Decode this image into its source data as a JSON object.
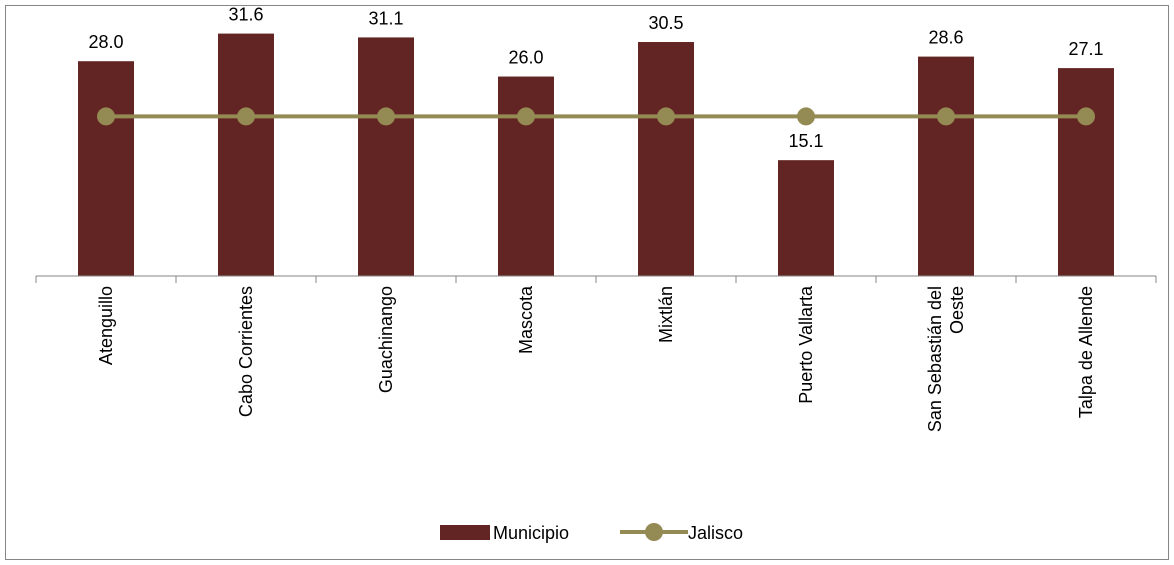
{
  "chart_data": {
    "type": "bar",
    "categories": [
      "Atenguillo",
      "Cabo Corrientes",
      "Guachinango",
      "Mascota",
      "Mixtlán",
      "Puerto Vallarta",
      "San Sebastián del Oeste",
      "Talpa de Allende"
    ],
    "category_lines": [
      [
        "Atenguillo"
      ],
      [
        "Cabo Corrientes"
      ],
      [
        "Guachinango"
      ],
      [
        "Mascota"
      ],
      [
        "Mixtlán"
      ],
      [
        "Puerto Vallarta"
      ],
      [
        "San Sebastián del",
        "Oeste"
      ],
      [
        "Talpa de Allende"
      ]
    ],
    "series": [
      {
        "name": "Municipio",
        "type": "bar",
        "color": "#632523",
        "values": [
          28.0,
          31.6,
          31.1,
          26.0,
          30.5,
          15.1,
          28.6,
          27.1
        ]
      },
      {
        "name": "Jalisco",
        "type": "line",
        "color": "#948A54",
        "values": [
          20.8,
          20.8,
          20.8,
          20.8,
          20.8,
          20.8,
          20.8,
          20.8
        ]
      }
    ],
    "data_labels": [
      "28.0",
      "31.6",
      "31.1",
      "26.0",
      "30.5",
      "15.1",
      "28.6",
      "27.1"
    ],
    "ylim": [
      0,
      35
    ],
    "grid": false,
    "legend": "bottom",
    "xlabel": "",
    "ylabel": ""
  }
}
